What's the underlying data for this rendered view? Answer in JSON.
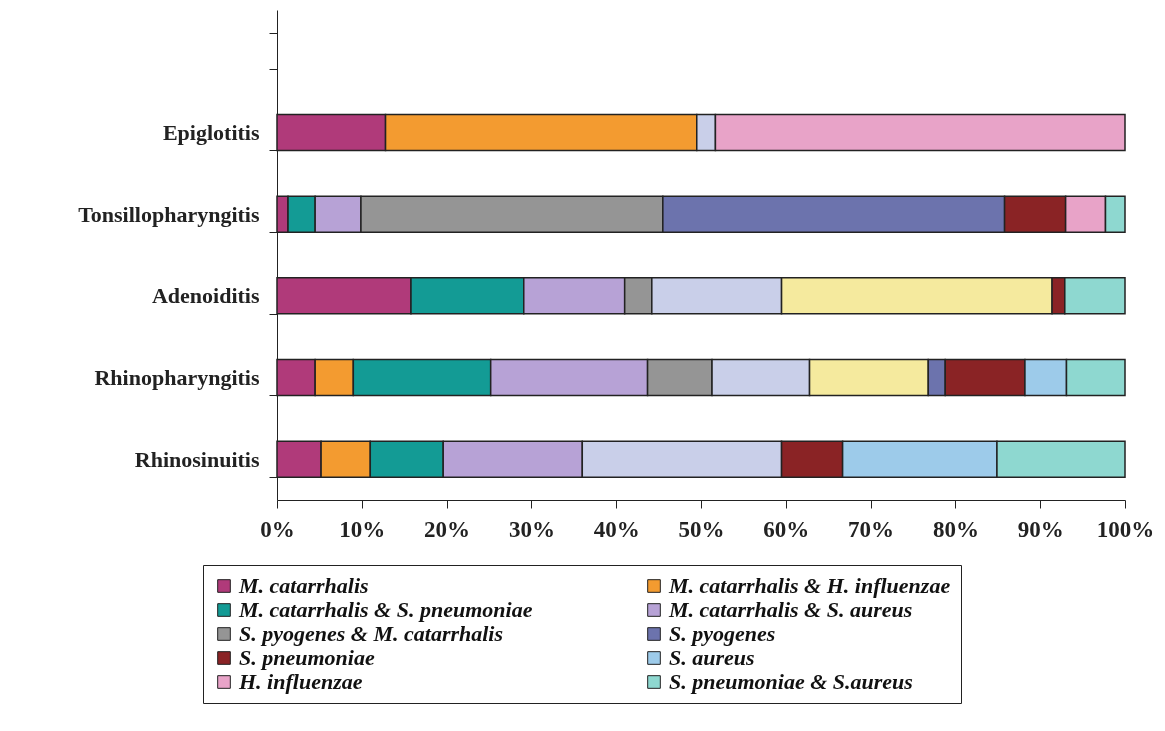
{
  "chart_data": {
    "type": "bar",
    "orientation": "horizontal",
    "stacked": true,
    "categories": [
      null,
      "Epiglotitis",
      "Tonsillopharyngitis",
      "Adenoiditis",
      "Rhinopharyngitis",
      "Rhinosinuitis"
    ],
    "series": [
      {
        "name": "M. catarrhalis",
        "color": "#b03a7a",
        "values": [
          null,
          12.8,
          1.3,
          15.8,
          4.5,
          5.2
        ]
      },
      {
        "name": "M. catarrhalis & H. influenzae",
        "color": "#f39b30",
        "values": [
          null,
          36.7,
          null,
          null,
          4.5,
          5.8
        ]
      },
      {
        "name": "M. catarrhalis & S. pneumoniae",
        "color": "#139b95",
        "values": [
          null,
          null,
          3.2,
          13.3,
          16.2,
          8.6
        ]
      },
      {
        "name": "M. catarrhalis & S. aureus",
        "color": "#b7a2d6",
        "values": [
          null,
          null,
          5.4,
          11.9,
          18.5,
          16.4
        ]
      },
      {
        "name": "S. pyogenes & M. catarrhalis",
        "color": "#959595",
        "values": [
          null,
          null,
          35.6,
          3.2,
          7.6,
          null
        ]
      },
      {
        "color": "#c9cfe9",
        "values": [
          null,
          2.2,
          null,
          15.3,
          11.5,
          23.5
        ]
      },
      {
        "color": "#f5ea9e",
        "values": [
          null,
          null,
          null,
          31.9,
          14.0,
          null
        ]
      },
      {
        "name": "S. pyogenes",
        "color": "#6c73ad",
        "values": [
          null,
          null,
          40.3,
          null,
          2.0,
          null
        ]
      },
      {
        "name": "S. pneumoniae",
        "color": "#8a2325",
        "values": [
          null,
          null,
          7.2,
          1.5,
          9.4,
          7.2
        ]
      },
      {
        "name": "S. aureus",
        "color": "#9dcbea",
        "values": [
          null,
          null,
          null,
          null,
          4.9,
          18.2
        ]
      },
      {
        "name": "H. influenzae",
        "color": "#e8a3c8",
        "values": [
          null,
          48.3,
          4.7,
          null,
          null,
          null
        ]
      },
      {
        "name": "S. pneumoniae & S.aureus",
        "color": "#8ed8d0",
        "values": [
          null,
          null,
          2.3,
          7.1,
          6.9,
          15.1
        ]
      }
    ],
    "xlim": [
      0,
      100
    ],
    "xticks": [
      {
        "value": 0,
        "label": "0%"
      },
      {
        "value": 10,
        "label": "10%"
      },
      {
        "value": 20,
        "label": "20%"
      },
      {
        "value": 30,
        "label": "30%"
      },
      {
        "value": 40,
        "label": "40%"
      },
      {
        "value": 50,
        "label": "50%"
      },
      {
        "value": 60,
        "label": "60%"
      },
      {
        "value": 70,
        "label": "70%"
      },
      {
        "value": 80,
        "label": "80%"
      },
      {
        "value": 90,
        "label": "90%"
      },
      {
        "value": 100,
        "label": "100%"
      }
    ],
    "grid": false,
    "legend": "bottom"
  }
}
